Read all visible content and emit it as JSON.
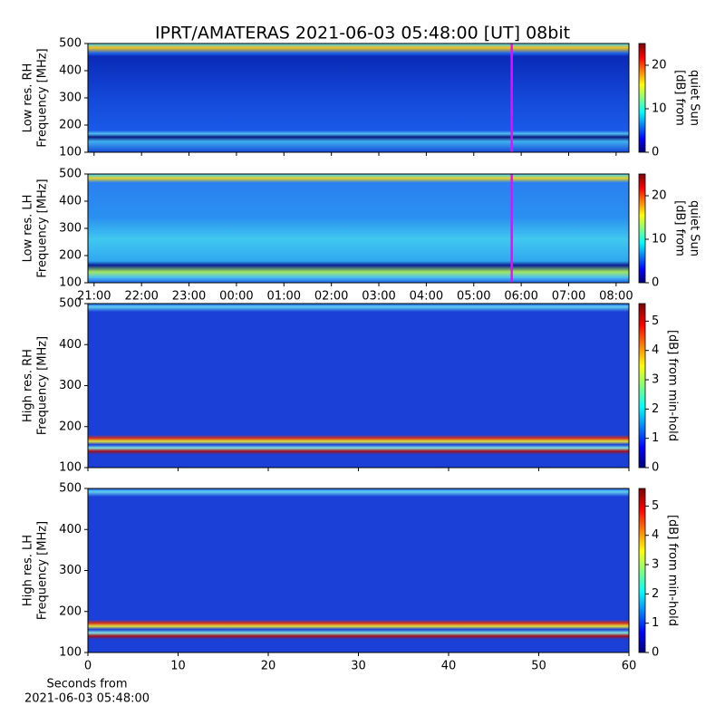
{
  "title": "IPRT/AMATERAS 2021-06-03 05:48:00 [UT]   08bit",
  "chart_data": [
    {
      "type": "spectrogram",
      "ylabel": [
        "Low res. RH",
        "Frequency [MHz]"
      ],
      "ylim": [
        100,
        500
      ],
      "yticks": [
        100,
        200,
        300,
        400,
        500
      ],
      "colormap": "jet",
      "colorbar": {
        "label": [
          "[dB] from",
          "quiet Sun"
        ],
        "lim": [
          0,
          25
        ],
        "ticks": [
          0,
          10,
          20
        ]
      },
      "marker_x": 29.8,
      "marker_color": "#ff00ff"
    },
    {
      "type": "spectrogram",
      "ylabel": [
        "Low res. LH",
        "Frequency [MHz]"
      ],
      "ylim": [
        100,
        500
      ],
      "yticks": [
        100,
        200,
        300,
        400,
        500
      ],
      "xlim": [
        20.87,
        32.27
      ],
      "xticks": [
        {
          "value": 21,
          "label": "21:00"
        },
        {
          "value": 22,
          "label": "22:00"
        },
        {
          "value": 23,
          "label": "23:00"
        },
        {
          "value": 24,
          "label": "00:00"
        },
        {
          "value": 25,
          "label": "01:00"
        },
        {
          "value": 26,
          "label": "02:00"
        },
        {
          "value": 27,
          "label": "03:00"
        },
        {
          "value": 28,
          "label": "04:00"
        },
        {
          "value": 29,
          "label": "05:00"
        },
        {
          "value": 30,
          "label": "06:00"
        },
        {
          "value": 31,
          "label": "07:00"
        },
        {
          "value": 32,
          "label": "08:00"
        }
      ],
      "colormap": "jet",
      "colorbar": {
        "label": [
          "[dB] from",
          "quiet Sun"
        ],
        "lim": [
          0,
          25
        ],
        "ticks": [
          0,
          10,
          20
        ]
      },
      "marker_x": 29.8,
      "marker_color": "#ff00ff"
    },
    {
      "type": "spectrogram",
      "ylabel": [
        "High res. RH",
        "Frequency [MHz]"
      ],
      "ylim": [
        100,
        500
      ],
      "yticks": [
        100,
        200,
        300,
        400,
        500
      ],
      "colormap": "jet",
      "colorbar": {
        "label": [
          "[dB] from min-hold"
        ],
        "lim": [
          0,
          5.6
        ],
        "ticks": [
          0,
          1,
          2,
          3,
          4,
          5
        ]
      }
    },
    {
      "type": "spectrogram",
      "ylabel": [
        "High res. LH",
        "Frequency [MHz]"
      ],
      "ylim": [
        100,
        500
      ],
      "yticks": [
        100,
        200,
        300,
        400,
        500
      ],
      "xlim": [
        0,
        60
      ],
      "xticks": [
        0,
        10,
        20,
        30,
        40,
        50,
        60
      ],
      "xlabel": [
        "Seconds from",
        "2021-06-03 05:48:00"
      ],
      "colormap": "jet",
      "colorbar": {
        "label": [
          "[dB] from min-hold"
        ],
        "lim": [
          0,
          5.6
        ],
        "ticks": [
          0,
          1,
          2,
          3,
          4,
          5
        ]
      }
    }
  ]
}
